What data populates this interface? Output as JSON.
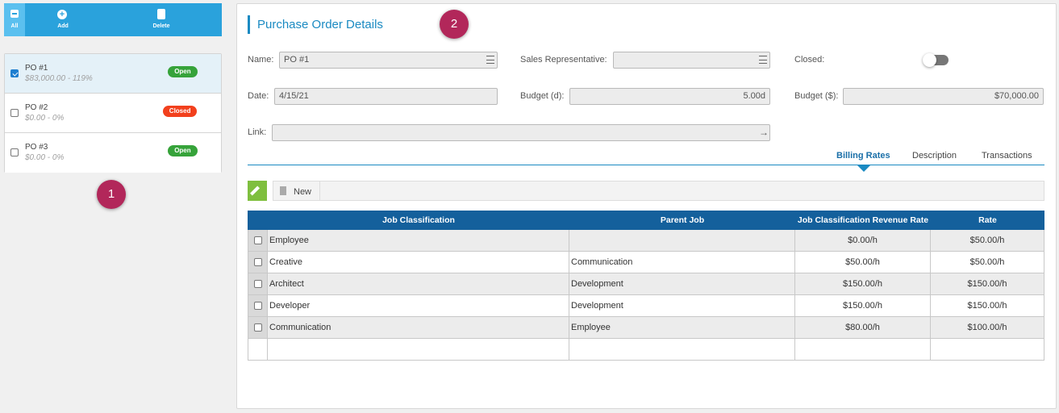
{
  "toolbar": {
    "buttons": [
      "All",
      "Add",
      "Delete"
    ]
  },
  "list": {
    "items": [
      {
        "title": "PO #1",
        "subtitle": "$83,000.00 - 119%",
        "status": "Open",
        "status_color": "#36a33a",
        "checked": true
      },
      {
        "title": "PO #2",
        "subtitle": "$0.00 - 0%",
        "status": "Closed",
        "status_color": "#f2401d",
        "checked": false
      },
      {
        "title": "PO #3",
        "subtitle": "$0.00 - 0%",
        "status": "Open",
        "status_color": "#36a33a",
        "checked": false
      }
    ]
  },
  "badges": [
    "1",
    "2"
  ],
  "details": {
    "title": "Purchase Order Details",
    "fields": [
      {
        "label": "Name:",
        "value": "PO #1"
      },
      {
        "label": "Sales Representative:"
      },
      {
        "label": "Closed:"
      },
      {
        "label": "Date:",
        "value": "4/15/21"
      },
      {
        "label": "Budget (d):",
        "value": "5.00d"
      },
      {
        "label": "Budget ($):",
        "value": "$70,000.00"
      },
      {
        "label": "Link:"
      }
    ],
    "tabs": [
      "Billing Rates",
      "Description",
      "Transactions"
    ],
    "new_button": "New",
    "table": {
      "columns": [
        "Job Classification",
        "Parent Job",
        "Job Classification Revenue Rate",
        "Rate"
      ],
      "rows": [
        [
          "Employee",
          null,
          "$0.00/h",
          "$50.00/h"
        ],
        [
          "Creative",
          "Communication",
          "$50.00/h",
          "$50.00/h"
        ],
        [
          "Architect",
          "Development",
          "$150.00/h",
          "$150.00/h"
        ],
        [
          "Developer",
          "Development",
          "$150.00/h",
          "$150.00/h"
        ],
        [
          "Communication",
          "Employee",
          "$80.00/h",
          "$100.00/h"
        ]
      ]
    }
  }
}
